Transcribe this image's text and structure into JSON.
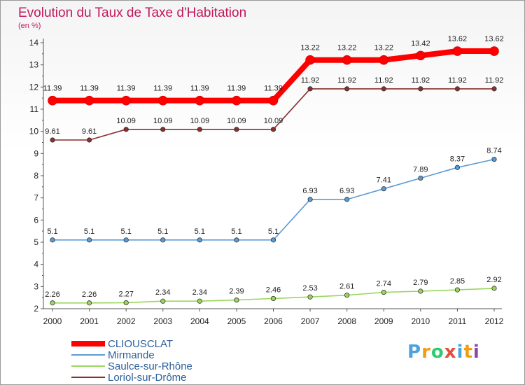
{
  "chart_data": {
    "type": "line",
    "title": "Evolution du Taux de Taxe d'Habitation",
    "subtitle": "(en %)",
    "x": [
      "2000",
      "2001",
      "2002",
      "2003",
      "2004",
      "2005",
      "2006",
      "2007",
      "2008",
      "2009",
      "2010",
      "2011",
      "2012"
    ],
    "y_ticks": [
      "2",
      "3",
      "4",
      "5",
      "6",
      "7",
      "8",
      "9",
      "10",
      "11",
      "12",
      "13",
      "14"
    ],
    "ylim": [
      2,
      14
    ],
    "grid": false,
    "legend_position": "bottom-left",
    "series": [
      {
        "name": "CLIOUSCLAT",
        "color": "#ff0000",
        "values": [
          11.39,
          11.39,
          11.39,
          11.39,
          11.39,
          11.39,
          11.39,
          13.22,
          13.22,
          13.22,
          13.42,
          13.62,
          13.62
        ],
        "labels": [
          "11.39",
          "11.39",
          "11.39",
          "11.39",
          "11.39",
          "11.39",
          "11.39",
          "13.22",
          "13.22",
          "13.22",
          "13.42",
          "13.62",
          "13.62"
        ]
      },
      {
        "name": "Mirmande",
        "color": "#5b9bd5",
        "values": [
          5.1,
          5.1,
          5.1,
          5.1,
          5.1,
          5.1,
          5.1,
          6.93,
          6.93,
          7.41,
          7.89,
          8.37,
          8.74
        ],
        "labels": [
          "5.1",
          "5.1",
          "5.1",
          "5.1",
          "5.1",
          "5.1",
          "5.1",
          "6.93",
          "6.93",
          "7.41",
          "7.89",
          "8.37",
          "8.74"
        ]
      },
      {
        "name": "Saulce-sur-Rhône",
        "color": "#9ad65e",
        "values": [
          2.26,
          2.26,
          2.27,
          2.34,
          2.34,
          2.39,
          2.46,
          2.53,
          2.61,
          2.74,
          2.79,
          2.85,
          2.92
        ],
        "labels": [
          "2.26",
          "2.26",
          "2.27",
          "2.34",
          "2.34",
          "2.39",
          "2.46",
          "2.53",
          "2.61",
          "2.74",
          "2.79",
          "2.85",
          "2.92"
        ]
      },
      {
        "name": "Loriol-sur-Drôme",
        "color": "#8b2e2e",
        "values": [
          9.61,
          9.61,
          10.09,
          10.09,
          10.09,
          10.09,
          10.09,
          11.92,
          11.92,
          11.92,
          11.92,
          11.92,
          11.92
        ],
        "labels": [
          "9.61",
          "9.61",
          "10.09",
          "10.09",
          "10.09",
          "10.09",
          "10.09",
          "11.92",
          "11.92",
          "11.92",
          "11.92",
          "11.92",
          "11.92"
        ]
      }
    ]
  },
  "brand": {
    "letters": [
      "P",
      "r",
      "o",
      "x",
      "i",
      "t",
      "i"
    ],
    "colors": [
      "#4aa3df",
      "#f39c12",
      "#2ecc71",
      "#e74c3c",
      "#4aa3df",
      "#f39c12",
      "#8e44ad"
    ]
  }
}
